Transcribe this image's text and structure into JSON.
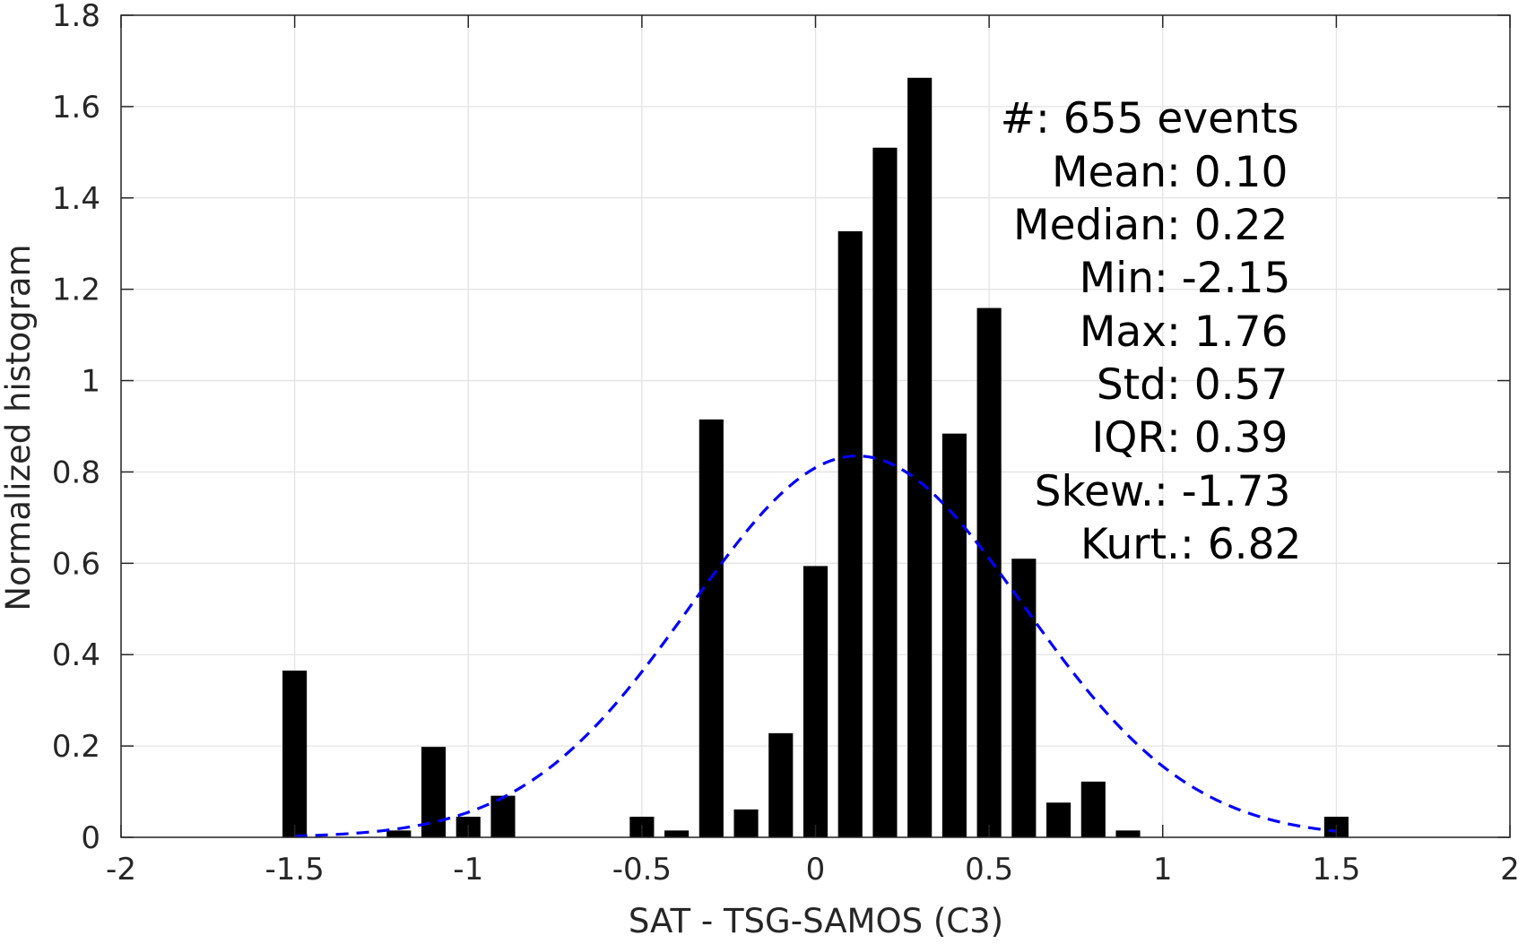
{
  "chart_data": {
    "type": "bar",
    "xlabel": "SAT - TSG-SAMOS (C3)",
    "ylabel": "Normalized histogram",
    "xlim": [
      -2,
      2
    ],
    "ylim": [
      0,
      1.8
    ],
    "xticks": [
      -2,
      -1.5,
      -1,
      -0.5,
      0,
      0.5,
      1,
      1.5,
      2
    ],
    "xtick_labels": [
      "-2",
      "-1.5",
      "-1",
      "-0.5",
      "0",
      "0.5",
      "1",
      "1.5",
      "2"
    ],
    "yticks": [
      0,
      0.2,
      0.4,
      0.6,
      0.8,
      1,
      1.2,
      1.4,
      1.6,
      1.8
    ],
    "ytick_labels": [
      "0",
      "0.2",
      "0.4",
      "0.6",
      "0.8",
      "1",
      "1.2",
      "1.4",
      "1.6",
      "1.8"
    ],
    "grid": true,
    "bar_color": "#000000",
    "bar_width": 0.07,
    "bars": [
      {
        "x": -1.5,
        "value": 0.365
      },
      {
        "x": -1.2,
        "value": 0.015
      },
      {
        "x": -1.1,
        "value": 0.198
      },
      {
        "x": -1.0,
        "value": 0.045
      },
      {
        "x": -0.9,
        "value": 0.091
      },
      {
        "x": -0.5,
        "value": 0.045
      },
      {
        "x": -0.4,
        "value": 0.015
      },
      {
        "x": -0.3,
        "value": 0.915
      },
      {
        "x": -0.2,
        "value": 0.061
      },
      {
        "x": -0.1,
        "value": 0.228
      },
      {
        "x": 0.0,
        "value": 0.594
      },
      {
        "x": 0.1,
        "value": 1.327
      },
      {
        "x": 0.2,
        "value": 1.51
      },
      {
        "x": 0.3,
        "value": 1.663
      },
      {
        "x": 0.4,
        "value": 0.884
      },
      {
        "x": 0.5,
        "value": 1.159
      },
      {
        "x": 0.6,
        "value": 0.61
      },
      {
        "x": 0.7,
        "value": 0.076
      },
      {
        "x": 0.8,
        "value": 0.122
      },
      {
        "x": 0.9,
        "value": 0.015
      },
      {
        "x": 1.5,
        "value": 0.045
      }
    ],
    "fit_curve": {
      "style": "dashed",
      "color": "#0000ff",
      "x_range": [
        -1.5,
        1.5
      ],
      "peak_x": 0.12,
      "peak_y": 0.835,
      "sigma": 0.48
    },
    "stats": [
      {
        "label": "#  ",
        "value": ": 655 events"
      },
      {
        "label": "Mean ",
        "value": ": 0.10"
      },
      {
        "label": "Median ",
        "value": ": 0.22"
      },
      {
        "label": "Min ",
        "value": ": -2.15"
      },
      {
        "label": "Max ",
        "value": ": 1.76"
      },
      {
        "label": "Std ",
        "value": ": 0.57"
      },
      {
        "label": "IQR ",
        "value": ": 0.39"
      },
      {
        "label": "Skew. ",
        "value": ": -1.73"
      },
      {
        "label": "Kurt. ",
        "value": ": 6.82"
      }
    ]
  }
}
